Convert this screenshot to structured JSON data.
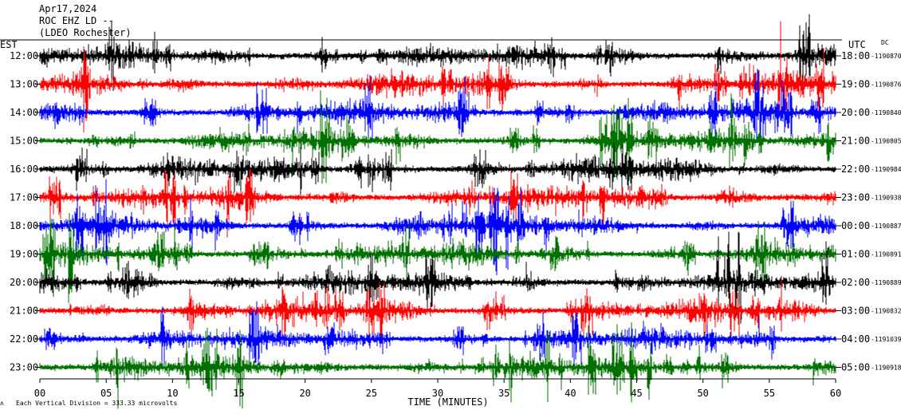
{
  "header": {
    "date": "Apr17,2024",
    "station": "ROC EHZ LD --",
    "location": "(LDEO Rochester)"
  },
  "labels": {
    "left_tz": "EST",
    "right_tz": "UTC",
    "dc": "DC",
    "xlabel": "TIME (MINUTES)",
    "scale_note": "Each Vertical Division = 333.33 microvolts"
  },
  "chart_data": {
    "type": "line",
    "title": "",
    "xlabel": "TIME (MINUTES)",
    "xlim": [
      0,
      60
    ],
    "xticks": [
      "00",
      "05",
      "10",
      "15",
      "20",
      "25",
      "30",
      "35",
      "40",
      "45",
      "50",
      "55",
      "60"
    ],
    "trace_colors": [
      "#000000",
      "#ff0000",
      "#0000ff",
      "#007000"
    ],
    "rows": [
      {
        "est": "12:00",
        "utc": "18:00",
        "dc": "-1190870"
      },
      {
        "est": "13:00",
        "utc": "19:00",
        "dc": "-1190876"
      },
      {
        "est": "14:00",
        "utc": "20:00",
        "dc": "-1190840"
      },
      {
        "est": "15:00",
        "utc": "21:00",
        "dc": "-1190805"
      },
      {
        "est": "16:00",
        "utc": "22:00",
        "dc": "-1190984"
      },
      {
        "est": "17:00",
        "utc": "23:00",
        "dc": "-1190938"
      },
      {
        "est": "18:00",
        "utc": "00:00",
        "dc": "-1190887"
      },
      {
        "est": "19:00",
        "utc": "01:00",
        "dc": "-1190891"
      },
      {
        "est": "20:00",
        "utc": "02:00",
        "dc": "-1190889"
      },
      {
        "est": "21:00",
        "utc": "03:00",
        "dc": "-1190832"
      },
      {
        "est": "22:00",
        "utc": "04:00",
        "dc": "-1191039"
      },
      {
        "est": "23:00",
        "utc": "05:00",
        "dc": "-1190918"
      }
    ]
  }
}
